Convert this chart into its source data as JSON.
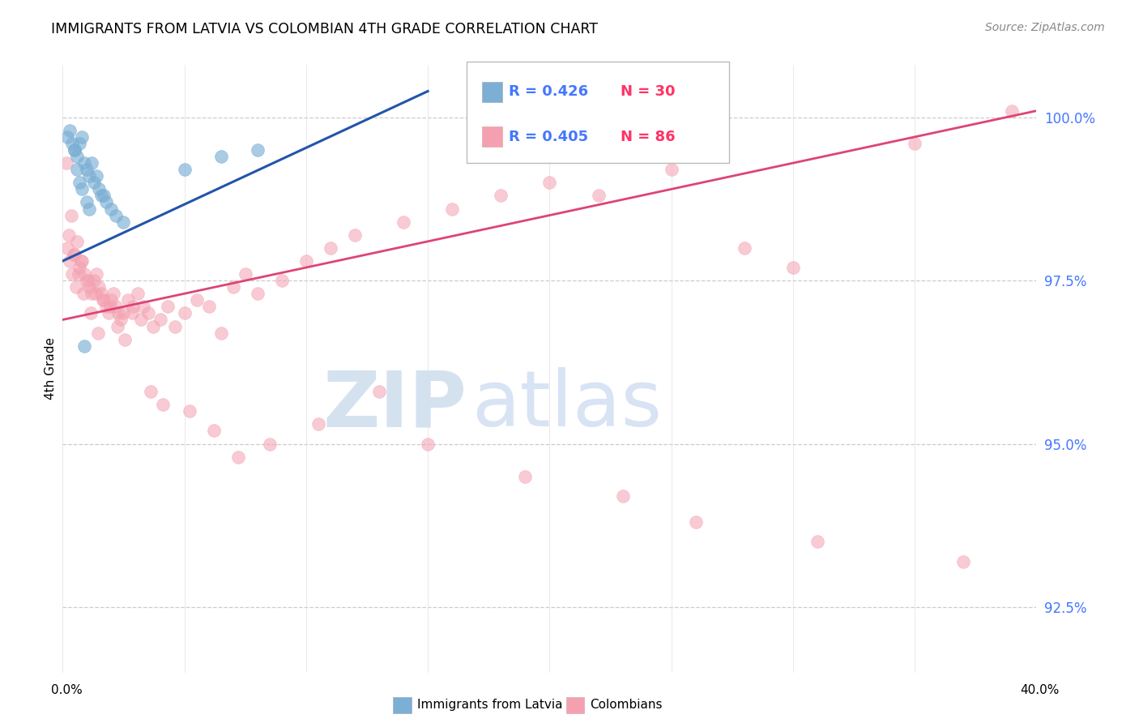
{
  "title": "IMMIGRANTS FROM LATVIA VS COLOMBIAN 4TH GRADE CORRELATION CHART",
  "source": "Source: ZipAtlas.com",
  "ylabel": "4th Grade",
  "ylabel_right_ticks": [
    92.5,
    95.0,
    97.5,
    100.0
  ],
  "ylabel_right_labels": [
    "92.5%",
    "95.0%",
    "97.5%",
    "100.0%"
  ],
  "xmin": 0.0,
  "xmax": 40.0,
  "ymin": 91.5,
  "ymax": 100.8,
  "blue_color": "#7BAFD4",
  "pink_color": "#F4A0B0",
  "trendline_blue": "#2255AA",
  "trendline_pink": "#DD4477",
  "watermark_zip": "ZIP",
  "watermark_atlas": "atlas",
  "background_color": "#FFFFFF",
  "grid_color": "#CCCCCC",
  "blue_trendline_x": [
    0.0,
    15.0
  ],
  "blue_trendline_y": [
    97.8,
    100.4
  ],
  "pink_trendline_x": [
    0.0,
    40.0
  ],
  "pink_trendline_y": [
    96.9,
    100.1
  ],
  "blue_scatter_x": [
    0.2,
    0.4,
    0.5,
    0.6,
    0.7,
    0.8,
    0.9,
    1.0,
    1.1,
    1.2,
    1.3,
    1.4,
    1.5,
    1.6,
    1.7,
    1.8,
    2.0,
    2.2,
    2.5,
    0.3,
    0.5,
    0.6,
    0.7,
    0.8,
    1.0,
    1.1,
    5.0,
    6.5,
    8.0,
    0.9
  ],
  "blue_scatter_y": [
    99.7,
    99.6,
    99.5,
    99.4,
    99.6,
    99.7,
    99.3,
    99.2,
    99.1,
    99.3,
    99.0,
    99.1,
    98.9,
    98.8,
    98.8,
    98.7,
    98.6,
    98.5,
    98.4,
    99.8,
    99.5,
    99.2,
    99.0,
    98.9,
    98.7,
    98.6,
    99.2,
    99.4,
    99.5,
    96.5
  ],
  "pink_scatter_x": [
    0.2,
    0.3,
    0.4,
    0.5,
    0.6,
    0.7,
    0.8,
    0.9,
    1.0,
    1.1,
    1.2,
    1.3,
    1.4,
    1.5,
    1.6,
    1.7,
    1.8,
    1.9,
    2.0,
    2.1,
    2.2,
    2.3,
    2.4,
    2.5,
    2.7,
    2.9,
    3.1,
    3.3,
    3.5,
    3.7,
    4.0,
    4.3,
    4.6,
    5.0,
    5.5,
    6.0,
    6.5,
    7.0,
    7.5,
    8.0,
    9.0,
    10.0,
    11.0,
    12.0,
    14.0,
    16.0,
    18.0,
    20.0,
    22.0,
    25.0,
    28.0,
    30.0,
    35.0,
    39.0,
    0.15,
    0.35,
    0.55,
    0.75,
    1.05,
    1.35,
    1.65,
    1.95,
    2.25,
    2.55,
    2.85,
    3.2,
    3.6,
    4.1,
    5.2,
    6.2,
    7.2,
    8.5,
    10.5,
    13.0,
    15.0,
    19.0,
    23.0,
    26.0,
    31.0,
    37.0,
    0.25,
    0.45,
    0.65,
    0.85,
    1.15,
    1.45
  ],
  "pink_scatter_y": [
    98.0,
    97.8,
    97.6,
    97.9,
    98.1,
    97.7,
    97.8,
    97.6,
    97.5,
    97.4,
    97.3,
    97.5,
    97.6,
    97.4,
    97.3,
    97.2,
    97.1,
    97.0,
    97.2,
    97.3,
    97.1,
    97.0,
    96.9,
    97.0,
    97.2,
    97.1,
    97.3,
    97.1,
    97.0,
    96.8,
    96.9,
    97.1,
    96.8,
    97.0,
    97.2,
    97.1,
    96.7,
    97.4,
    97.6,
    97.3,
    97.5,
    97.8,
    98.0,
    98.2,
    98.4,
    98.6,
    98.8,
    99.0,
    98.8,
    99.2,
    98.0,
    97.7,
    99.6,
    100.1,
    99.3,
    98.5,
    97.4,
    97.8,
    97.5,
    97.3,
    97.2,
    97.1,
    96.8,
    96.6,
    97.0,
    96.9,
    95.8,
    95.6,
    95.5,
    95.2,
    94.8,
    95.0,
    95.3,
    95.8,
    95.0,
    94.5,
    94.2,
    93.8,
    93.5,
    93.2,
    98.2,
    97.9,
    97.6,
    97.3,
    97.0,
    96.7
  ]
}
